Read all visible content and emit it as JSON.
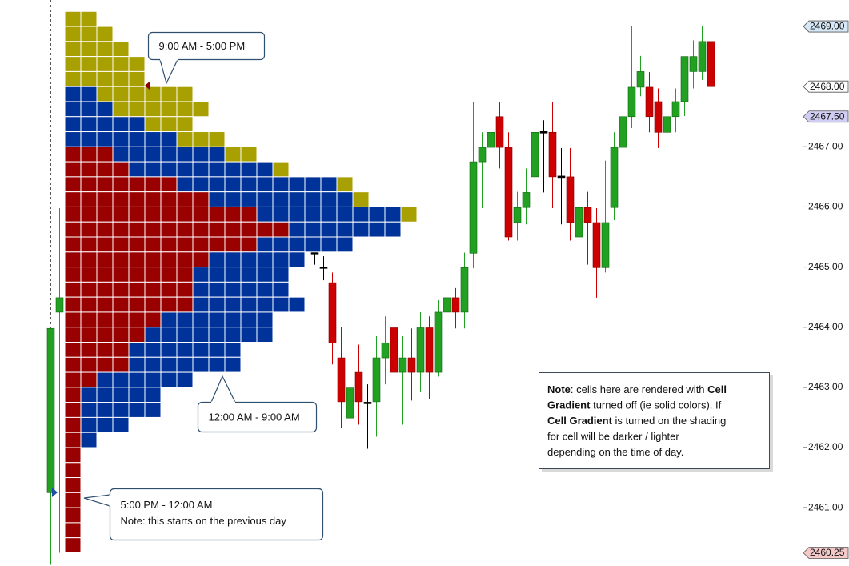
{
  "chart_data": {
    "type": "candlestick",
    "up_color": "#22a022",
    "down_color": "#cc0000",
    "doji_color": "#000000",
    "ylim": [
      2460.03,
      2469.44
    ],
    "yticks": [
      {
        "value": 2461,
        "label": "2461.00"
      },
      {
        "value": 2462,
        "label": "2462.00"
      },
      {
        "value": 2463,
        "label": "2463.00"
      },
      {
        "value": 2464,
        "label": "2464.00"
      },
      {
        "value": 2465,
        "label": "2465.00"
      },
      {
        "value": 2466,
        "label": "2466.00"
      },
      {
        "value": 2467,
        "label": "2467.00"
      }
    ],
    "price_markers": [
      {
        "value": 2469,
        "label": "2469.00",
        "color": "#d6e8f7"
      },
      {
        "value": 2468,
        "label": "2468.00",
        "color": "#ffffff"
      },
      {
        "value": 2467.5,
        "label": "2467.50",
        "color": "#cfcdf2"
      },
      {
        "value": 2460.25,
        "label": "2460.25",
        "color": "#f6c9c9"
      }
    ],
    "open": [
      2461.25,
      2464.25,
      null,
      null,
      null,
      null,
      null,
      null,
      null,
      null,
      null,
      null,
      null,
      null,
      null,
      null,
      null,
      null,
      null,
      null,
      null,
      null,
      null,
      null,
      null,
      null,
      null,
      null,
      null,
      null,
      2465.23,
      2464.99,
      2464.74,
      2463.49,
      2462.49,
      2463.25,
      2462.74,
      2462.76,
      2463.49,
      2463.99,
      2463.25,
      2463.49,
      2463.25,
      2463.99,
      2463.25,
      2464.25,
      2464.49,
      2464.25,
      2465.23,
      2466.75,
      2466.99,
      2467.5,
      2466.99,
      2465.74,
      2465.99,
      2466.5,
      2467.24,
      2467.24,
      2466.5,
      2466.5,
      2465.5,
      2465.99,
      2465.74,
      2464.99,
      2465.99,
      2466.99,
      2467.5,
      2467.99,
      2467.99,
      2467.75,
      2467.24,
      2467.5,
      2467.75,
      2468.25,
      2468.25,
      2468.75
    ],
    "high": [
      2463.98,
      2465.98,
      null,
      null,
      null,
      null,
      null,
      null,
      null,
      null,
      null,
      null,
      null,
      null,
      null,
      null,
      null,
      null,
      null,
      null,
      null,
      null,
      null,
      null,
      null,
      null,
      null,
      null,
      null,
      null,
      2465.44,
      2465.18,
      2464.91,
      2464.01,
      2463.31,
      2463.71,
      2463.05,
      2463.85,
      2464.18,
      2464.25,
      2463.85,
      2463.98,
      2464.25,
      2464.18,
      2464.45,
      2464.75,
      2464.65,
      2465.24,
      2467.74,
      2467.24,
      2467.51,
      2467.74,
      2467.24,
      2466.25,
      2466.64,
      2467.44,
      2467.44,
      2467.74,
      2466.98,
      2466.98,
      2466.25,
      2466.25,
      2465.98,
      2466.77,
      2467.24,
      2467.74,
      2469.0,
      2468.51,
      2468.24,
      2467.97,
      2467.77,
      2467.97,
      2468.5,
      2468.77,
      2469.0,
      2469.0
    ],
    "low": [
      2460.05,
      2460.25,
      null,
      null,
      null,
      null,
      null,
      null,
      null,
      null,
      null,
      null,
      null,
      null,
      null,
      null,
      null,
      null,
      null,
      null,
      null,
      null,
      null,
      null,
      null,
      null,
      null,
      null,
      null,
      null,
      2465.04,
      2464.78,
      2463.38,
      2462.32,
      2462.18,
      2462.38,
      2461.98,
      2462.18,
      2463.05,
      2462.25,
      2462.38,
      2462.78,
      2462.92,
      2462.8,
      2463.18,
      2463.85,
      2463.98,
      2463.98,
      2464.98,
      2465.98,
      2466.58,
      2466.64,
      2465.44,
      2465.44,
      2465.71,
      2466.24,
      2466.24,
      2465.98,
      2465.71,
      2465.44,
      2464.25,
      2465.04,
      2464.49,
      2464.91,
      2465.78,
      2466.91,
      2467.31,
      2467.84,
      2467.24,
      2466.98,
      2466.77,
      2467.24,
      2467.51,
      2467.97,
      2468.11,
      2467.5
    ],
    "close": [
      2463.98,
      2464.49,
      null,
      null,
      null,
      null,
      null,
      null,
      null,
      null,
      null,
      null,
      null,
      null,
      null,
      null,
      null,
      null,
      null,
      null,
      null,
      null,
      null,
      null,
      null,
      null,
      null,
      null,
      null,
      null,
      2465.23,
      2464.99,
      2463.74,
      2462.76,
      2462.99,
      2462.76,
      2462.74,
      2463.49,
      2463.74,
      2463.25,
      2463.49,
      2463.25,
      2463.99,
      2463.25,
      2464.25,
      2464.49,
      2464.25,
      2464.99,
      2466.75,
      2466.99,
      2467.24,
      2466.99,
      2465.5,
      2465.99,
      2466.24,
      2467.24,
      2467.24,
      2466.5,
      2466.5,
      2465.74,
      2465.99,
      2465.74,
      2464.99,
      2465.74,
      2466.99,
      2467.5,
      2467.99,
      2468.25,
      2467.5,
      2467.24,
      2467.5,
      2467.75,
      2468.5,
      2468.5,
      2468.75,
      2468.0
    ],
    "profile": {
      "prices": [
        2469.25,
        2469.0,
        2468.75,
        2468.5,
        2468.25,
        2468.0,
        2467.75,
        2467.5,
        2467.25,
        2467.0,
        2466.75,
        2466.5,
        2466.25,
        2466.0,
        2465.75,
        2465.5,
        2465.25,
        2465.0,
        2464.75,
        2464.5,
        2464.25,
        2464.0,
        2463.75,
        2463.5,
        2463.25,
        2463.0,
        2462.75,
        2462.5,
        2462.25,
        2462.0,
        2461.75,
        2461.5,
        2461.25,
        2461.0,
        2460.75,
        2460.5
      ],
      "segments": [
        {
          "color": "#990000",
          "counts": [
            0,
            0,
            0,
            0,
            0,
            0,
            0,
            0,
            0,
            3,
            4,
            7,
            9,
            12,
            14,
            12,
            9,
            8,
            8,
            8,
            6,
            5,
            4,
            4,
            2,
            1,
            1,
            1,
            1,
            1,
            1,
            1,
            1,
            1,
            1,
            1
          ]
        },
        {
          "color": "#003399",
          "counts": [
            0,
            0,
            0,
            0,
            0,
            2,
            3,
            5,
            7,
            7,
            9,
            10,
            9,
            9,
            7,
            6,
            6,
            6,
            6,
            7,
            7,
            8,
            7,
            7,
            6,
            5,
            5,
            3,
            1,
            0,
            0,
            0,
            0,
            0,
            0,
            0
          ]
        },
        {
          "color": "#a89f00",
          "counts": [
            2,
            3,
            4,
            5,
            5,
            6,
            6,
            3,
            3,
            2,
            1,
            1,
            1,
            1,
            0,
            0,
            0,
            0,
            0,
            0,
            0,
            0,
            0,
            0,
            0,
            0,
            0,
            0,
            0,
            0,
            0,
            0,
            0,
            0,
            0,
            0
          ]
        }
      ]
    },
    "callouts": [
      {
        "lines": [
          "9:00 AM - 5:00 PM"
        ]
      },
      {
        "lines": [
          "12:00 AM - 9:00 AM"
        ]
      },
      {
        "lines": [
          "5:00 PM - 12:00 AM",
          "Note: this starts on the previous day"
        ]
      }
    ],
    "note": {
      "lines": [
        [
          {
            "text": "Note",
            "bold": true
          },
          {
            "text": ": cells here are rendered with "
          },
          {
            "text": "Cell",
            "bold": true
          }
        ],
        [
          {
            "text": "Gradient",
            "bold": true
          },
          {
            "text": " turned off (ie solid colors). If"
          }
        ],
        [
          {
            "text": "Cell Gradient",
            "bold": true
          },
          {
            "text": " is turned on the shading"
          }
        ],
        [
          {
            "text": "for cell will be darker / lighter"
          }
        ],
        [
          {
            "text": "depending on the time of day."
          }
        ]
      ]
    }
  }
}
